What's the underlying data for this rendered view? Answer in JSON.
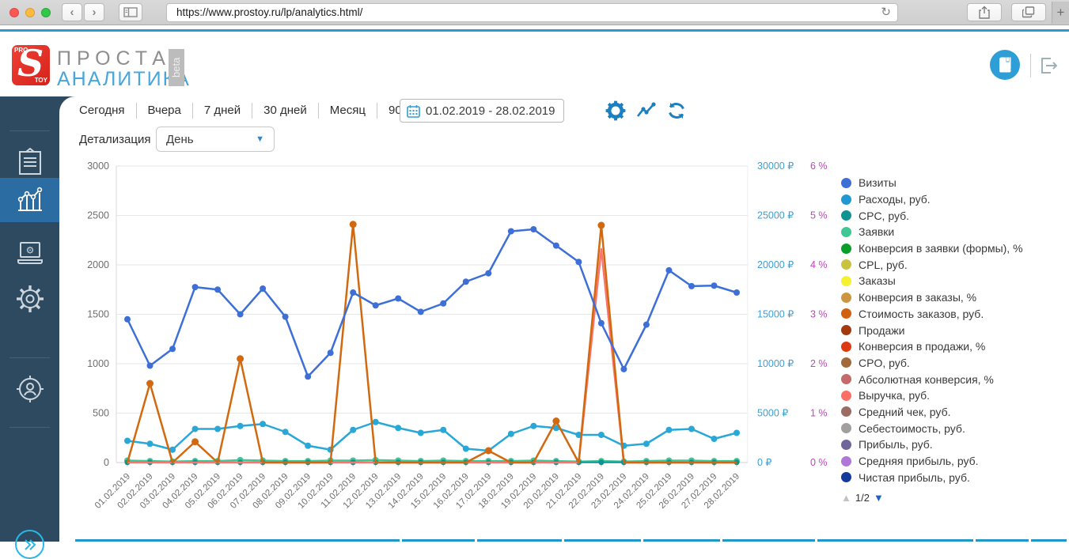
{
  "browser": {
    "url": "https://www.prostoy.ru/lp/analytics.html/",
    "back": "‹",
    "forward": "›",
    "reload": "↻",
    "new_tab": "+"
  },
  "header": {
    "logo_letter": "S",
    "logo_top": "PRO",
    "logo_bottom": "TOY",
    "brand_line1": "ПРОСТАЯ",
    "brand_line2": "АНАЛИТИКА",
    "beta": "beta"
  },
  "toolbar": {
    "range_tabs": [
      "Сегодня",
      "Вчера",
      "7 дней",
      "30 дней",
      "Месяц",
      "90 дней"
    ],
    "date_range": "01.02.2019 - 28.02.2019",
    "detail_label": "Детализация",
    "detail_value": "День",
    "detail_chevron": "▼"
  },
  "legend": {
    "items": [
      {
        "label": "Визиты",
        "color": "#3D6FD6"
      },
      {
        "label": "Расходы, руб.",
        "color": "#2098D4"
      },
      {
        "label": "CPC, руб.",
        "color": "#0E9390"
      },
      {
        "label": "Заявки",
        "color": "#41C795"
      },
      {
        "label": "Конверсия в заявки (формы), %",
        "color": "#089E28"
      },
      {
        "label": "CPL, руб.",
        "color": "#C8C23F"
      },
      {
        "label": "Заказы",
        "color": "#F5F130"
      },
      {
        "label": "Конверсия в заказы, %",
        "color": "#CE9540"
      },
      {
        "label": "Стоимость заказов, руб.",
        "color": "#D2600E"
      },
      {
        "label": "Продажи",
        "color": "#A33A0F"
      },
      {
        "label": "Конверсия в продажи, %",
        "color": "#DE3A12"
      },
      {
        "label": "CPO, руб.",
        "color": "#A26A39"
      },
      {
        "label": "Абсолютная конверсия, %",
        "color": "#C46A6A"
      },
      {
        "label": "Выручка, руб.",
        "color": "#F96F66"
      },
      {
        "label": "Средний чек, руб.",
        "color": "#9A6C64"
      },
      {
        "label": "Себестоимость, руб.",
        "color": "#A39E9E"
      },
      {
        "label": "Прибыль, руб.",
        "color": "#70669A"
      },
      {
        "label": "Средняя прибыль, руб.",
        "color": "#B177D8"
      },
      {
        "label": "Чистая прибыль, руб.",
        "color": "#143B9C"
      }
    ],
    "pager_up": "▲",
    "pager": "1/2",
    "pager_down": "▼"
  },
  "chart_data": {
    "type": "line",
    "grid": true,
    "x_categories": [
      "01.02.2019",
      "02.02.2019",
      "03.02.2019",
      "04.02.2019",
      "05.02.2019",
      "06.02.2019",
      "07.02.2019",
      "08.02.2019",
      "09.02.2019",
      "10.02.2019",
      "11.02.2019",
      "12.02.2019",
      "13.02.2019",
      "14.02.2019",
      "15.02.2019",
      "16.02.2019",
      "17.02.2019",
      "18.02.2019",
      "19.02.2019",
      "20.02.2019",
      "21.02.2019",
      "22.02.2019",
      "23.02.2019",
      "24.02.2019",
      "25.02.2019",
      "26.02.2019",
      "27.02.2019",
      "28.02.2019"
    ],
    "left_axis": {
      "ticks": [
        0,
        500,
        1000,
        1500,
        2000,
        2500,
        3000
      ],
      "max": 3000
    },
    "rub_axis": {
      "ticks": [
        0,
        5000,
        10000,
        15000,
        20000,
        25000,
        30000
      ],
      "suffix": " ₽",
      "max": 30000
    },
    "pct_axis": {
      "ticks": [
        0,
        1,
        2,
        3,
        4,
        5,
        6
      ],
      "suffix": " %",
      "max": 6
    },
    "series": [
      {
        "name": "Заявки",
        "axis": "left",
        "color": "#41C795",
        "dot": 4,
        "width": 2.5,
        "values": [
          20,
          15,
          10,
          15,
          15,
          25,
          20,
          15,
          15,
          20,
          20,
          25,
          20,
          15,
          20,
          15,
          15,
          15,
          20,
          15,
          10,
          15,
          10,
          15,
          20,
          20,
          15,
          15
        ]
      },
      {
        "name": "CPC, руб.",
        "axis": "rub",
        "color": "#0E9390",
        "dot": 3.5,
        "width": 2,
        "values": [
          20,
          20,
          15,
          20,
          20,
          20,
          20,
          20,
          20,
          15,
          20,
          25,
          20,
          20,
          20,
          15,
          15,
          20,
          20,
          20,
          20,
          20,
          20,
          15,
          20,
          20,
          15,
          20
        ]
      },
      {
        "name": "Расходы, руб.",
        "axis": "rub",
        "color": "#29A8D8",
        "dot": 4,
        "width": 2.5,
        "values": [
          2200,
          1900,
          1300,
          3400,
          3400,
          3700,
          3900,
          3100,
          1700,
          1300,
          3300,
          4100,
          3500,
          3000,
          3300,
          1400,
          1200,
          2900,
          3700,
          3500,
          2800,
          2800,
          1700,
          1900,
          3300,
          3400,
          2400,
          3000
        ]
      },
      {
        "name": "Выручка, руб.",
        "axis": "rub",
        "color": "#F9776E",
        "dot": 0,
        "width": 2.5,
        "values": [
          0,
          0,
          0,
          0,
          0,
          0,
          0,
          0,
          0,
          0,
          0,
          0,
          0,
          0,
          0,
          0,
          0,
          0,
          0,
          0,
          0,
          21600,
          0,
          0,
          0,
          0,
          0,
          0
        ]
      },
      {
        "name": "Стоимость заказов, руб.",
        "axis": "rub",
        "color": "#D2690E",
        "dot": 4.5,
        "dots_nonzero_only": true,
        "width": 2.5,
        "values": [
          0,
          8000,
          0,
          2100,
          0,
          10500,
          0,
          0,
          0,
          0,
          24100,
          0,
          0,
          0,
          0,
          0,
          1200,
          0,
          0,
          4200,
          0,
          24000,
          0,
          0,
          0,
          0,
          0,
          0
        ]
      },
      {
        "name": "Визиты",
        "axis": "left",
        "color": "#3D6FD6",
        "dot": 4,
        "width": 2.5,
        "values": [
          1450,
          980,
          1150,
          1775,
          1750,
          1500,
          1760,
          1475,
          870,
          1110,
          1720,
          1590,
          1660,
          1525,
          1610,
          1830,
          1915,
          2340,
          2360,
          2195,
          2030,
          1410,
          945,
          1395,
          1945,
          1785,
          1790,
          1720
        ]
      }
    ]
  }
}
